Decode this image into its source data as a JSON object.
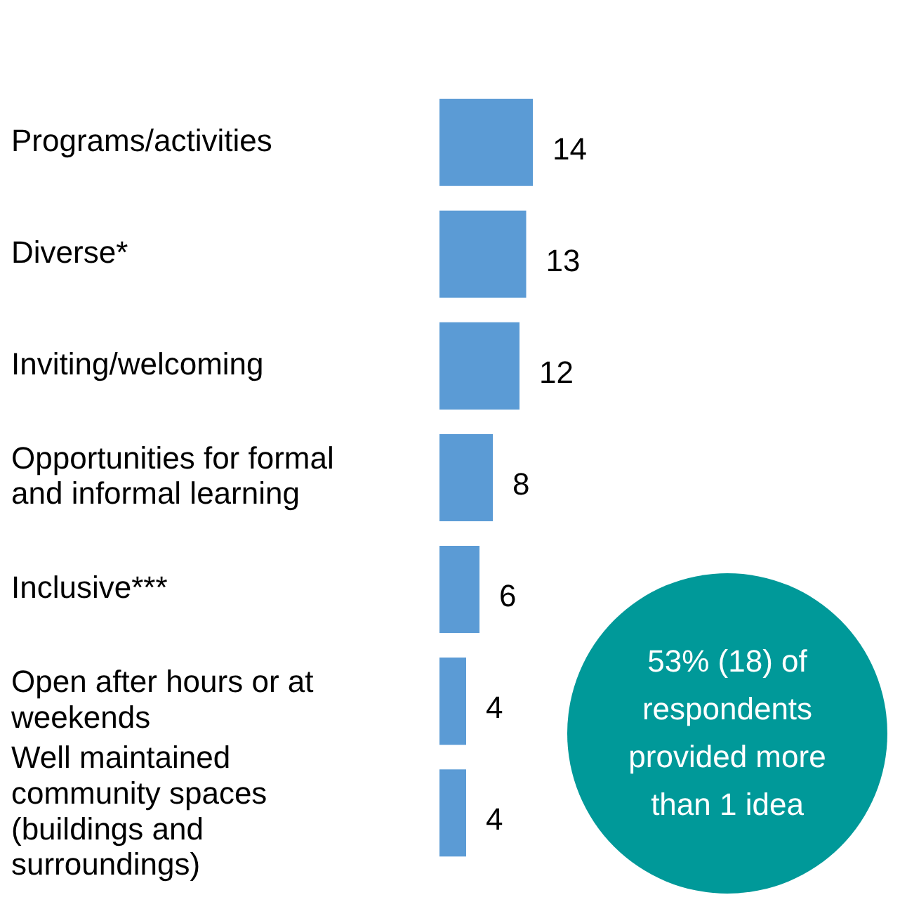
{
  "chart_data": {
    "type": "bar",
    "orientation": "horizontal",
    "categories": [
      "Programs/activities",
      "Diverse*",
      "Inviting/welcoming",
      "Opportunities for formal and informal learning",
      "Inclusive***",
      "Open after hours or at weekends",
      "Well maintained community spaces (buildings and surroundings)"
    ],
    "values": [
      14,
      13,
      12,
      8,
      6,
      4,
      4
    ],
    "color": "#5b9bd5",
    "data_labels": true,
    "annotations": [
      "53% (18) of respondents provided more than 1 idea"
    ]
  }
}
